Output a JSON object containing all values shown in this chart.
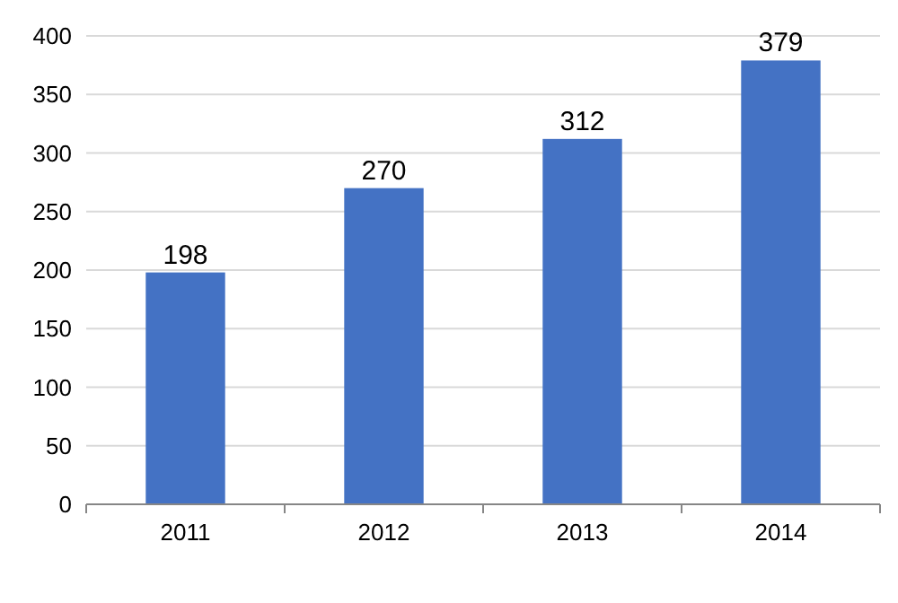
{
  "chart_data": {
    "type": "bar",
    "categories": [
      "2011",
      "2012",
      "2013",
      "2014"
    ],
    "values": [
      198,
      270,
      312,
      379
    ],
    "color": "#4472c4",
    "ylim": [
      0,
      400
    ],
    "yticks": [
      0,
      50,
      100,
      150,
      200,
      250,
      300,
      350,
      400
    ],
    "grid": "y",
    "data_labels": true
  }
}
